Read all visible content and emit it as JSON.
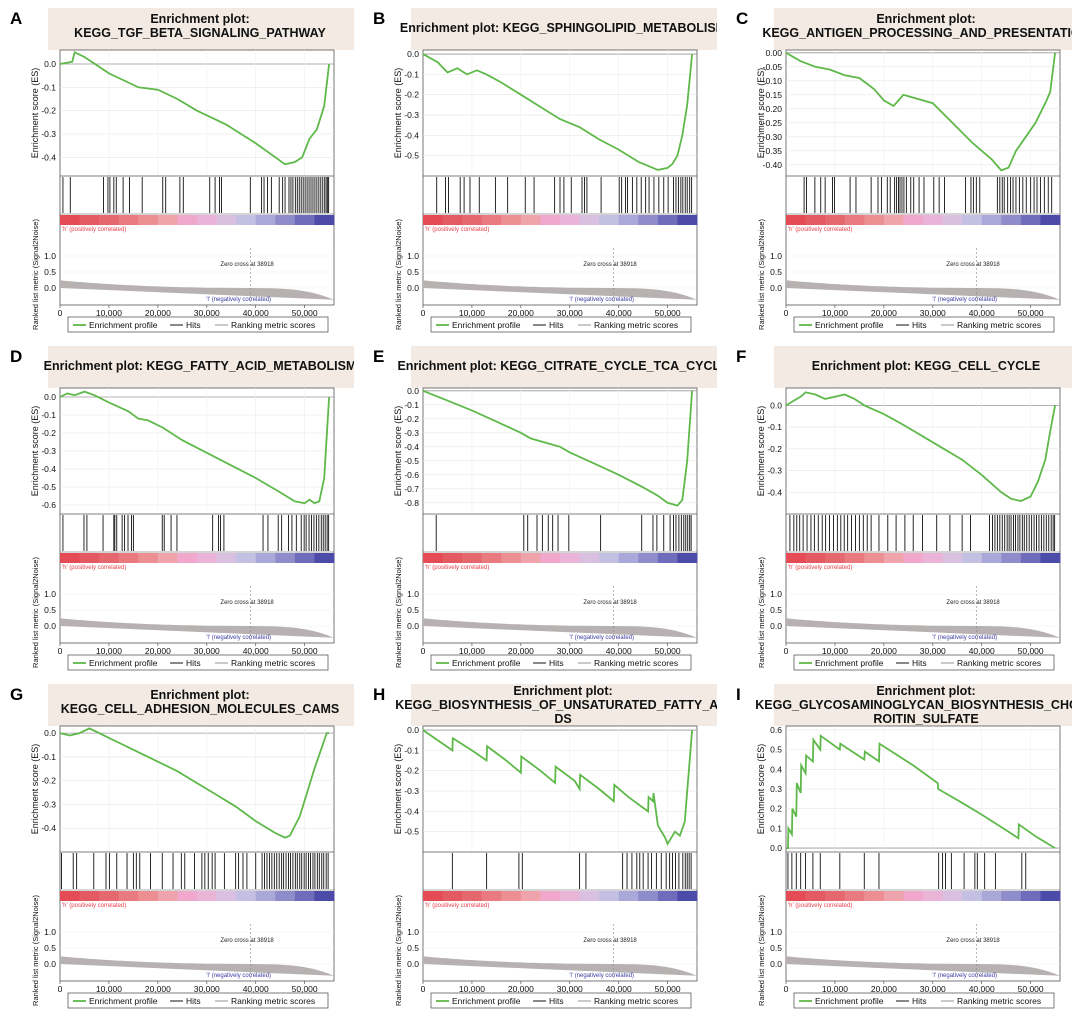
{
  "figure": {
    "panels": [
      {
        "letter": "A",
        "title_lines": [
          "Enrichment plot:",
          "KEGG_TGF_BETA_SIGNALING_PATHWAY"
        ]
      },
      {
        "letter": "B",
        "title_lines": [
          "Enrichment plot: KEGG_SPHINGOLIPID_METABOLISM"
        ]
      },
      {
        "letter": "C",
        "title_lines": [
          "Enrichment plot:",
          "KEGG_ANTIGEN_PROCESSING_AND_PRESENTATION"
        ]
      },
      {
        "letter": "D",
        "title_lines": [
          "Enrichment plot: KEGG_FATTY_ACID_METABOLISM"
        ]
      },
      {
        "letter": "E",
        "title_lines": [
          "Enrichment plot: KEGG_CITRATE_CYCLE_TCA_CYCLE"
        ]
      },
      {
        "letter": "F",
        "title_lines": [
          "Enrichment plot: KEGG_CELL_CYCLE"
        ]
      },
      {
        "letter": "G",
        "title_lines": [
          "Enrichment plot:",
          "KEGG_CELL_ADHESION_MOLECULES_CAMS"
        ]
      },
      {
        "letter": "H",
        "title_lines": [
          "Enrichment plot:",
          "KEGG_BIOSYNTHESIS_OF_UNSATURATED_FATTY_ACI",
          "DS"
        ]
      },
      {
        "letter": "I",
        "title_lines": [
          "Enrichment plot:",
          "KEGG_GLYCOSAMINOGLYCAN_BIOSYNTHESIS_CHOND",
          "ROITIN_SULFATE"
        ]
      }
    ]
  },
  "common": {
    "es_ylabel": "Enrichment score (ES)",
    "metric_ylabel": "Ranked list metric (Signal2Noise)",
    "xlabel": "Rank in Ordered Dataset",
    "pos_label": "'h' (positively correlated)",
    "neg_label": "'l' (negatively correlated)",
    "zero_cross": "Zero cross at 38918",
    "x_ticks": [
      "0",
      "10,000",
      "20,000",
      "30,000",
      "40,000",
      "50,000"
    ],
    "metric_ticks": [
      "0.0",
      "0.5",
      "1.0"
    ],
    "legend": [
      "Enrichment profile",
      "Hits",
      "Ranking metric scores"
    ]
  },
  "colors": {
    "es_line": "#5fb94a",
    "hit": "#111111",
    "metric_fill": "#b7b1b1",
    "pos_text": "#e8404a",
    "neg_text": "#3c3ca0",
    "title_bg": "#f3ebe3"
  },
  "chart_data": [
    {
      "type": "line",
      "panel": "A",
      "title": "KEGG_TGF_BETA_SIGNALING_PATHWAY",
      "xlabel": "Rank in Ordered Dataset",
      "ylabel": "Enrichment score (ES)",
      "xlim": [
        0,
        56000
      ],
      "ylim": [
        -0.48,
        0.06
      ],
      "y_ticks": [
        "0.0",
        "-0.1",
        "-0.2",
        "-0.3",
        "-0.4"
      ],
      "x": [
        0,
        2500,
        3000,
        5000,
        10000,
        12000,
        16000,
        20000,
        24000,
        28000,
        34000,
        40000,
        46000,
        48000,
        49500,
        51000,
        52500,
        54000,
        55000
      ],
      "y": [
        0.0,
        0.01,
        0.05,
        0.03,
        -0.04,
        -0.06,
        -0.1,
        -0.11,
        -0.15,
        -0.2,
        -0.26,
        -0.34,
        -0.43,
        -0.42,
        -0.4,
        -0.32,
        -0.28,
        -0.18,
        0.0
      ],
      "hits": [
        600,
        2100,
        8900,
        9800,
        10200,
        11000,
        11500,
        12900,
        14200,
        16800,
        21000,
        21600,
        24500,
        25200,
        30600,
        31700,
        32600,
        33000,
        38900,
        41200,
        41700,
        42400,
        43200,
        44800,
        45500,
        46000,
        46800,
        47200,
        47600,
        48100,
        48500,
        48900,
        49300,
        49700,
        50100,
        50500,
        50900,
        51300,
        51700,
        52100,
        52500,
        52900,
        53300,
        53700,
        54100,
        54400,
        54700,
        54900
      ]
    },
    {
      "type": "line",
      "panel": "B",
      "title": "KEGG_SPHINGOLIPID_METABOLISM",
      "xlabel": "Rank in Ordered Dataset",
      "ylabel": "Enrichment score (ES)",
      "xlim": [
        0,
        56000
      ],
      "ylim": [
        -0.6,
        0.02
      ],
      "y_ticks": [
        "0.0",
        "-0.1",
        "-0.2",
        "-0.3",
        "-0.4",
        "-0.5"
      ],
      "x": [
        0,
        3000,
        5000,
        7000,
        9000,
        11000,
        13000,
        16000,
        20000,
        24000,
        28000,
        32000,
        36000,
        40000,
        44000,
        48000,
        50000,
        51000,
        52000,
        53000,
        54000,
        55000
      ],
      "y": [
        0.0,
        -0.04,
        -0.09,
        -0.07,
        -0.1,
        -0.08,
        -0.1,
        -0.14,
        -0.2,
        -0.26,
        -0.32,
        -0.36,
        -0.42,
        -0.47,
        -0.53,
        -0.57,
        -0.56,
        -0.54,
        -0.5,
        -0.4,
        -0.25,
        0.0
      ],
      "hits": [
        2800,
        4600,
        5200,
        7600,
        8400,
        9600,
        11500,
        14800,
        17300,
        20900,
        22700,
        26900,
        28000,
        28800,
        30300,
        32500,
        33000,
        33500,
        36400,
        40100,
        40600,
        41400,
        41800,
        42800,
        43700,
        44600,
        45500,
        46200,
        47200,
        48200,
        49200,
        50100,
        51200,
        51700,
        52200,
        52700,
        53100,
        53600,
        54000,
        54500,
        54900
      ]
    },
    {
      "type": "line",
      "panel": "C",
      "title": "KEGG_ANTIGEN_PROCESSING_AND_PRESENTATION",
      "xlabel": "Rank in Ordered Dataset",
      "ylabel": "Enrichment score (ES)",
      "xlim": [
        0,
        56000
      ],
      "ylim": [
        -0.44,
        0.01
      ],
      "y_ticks": [
        "0.00",
        "-0.05",
        "-0.10",
        "-0.15",
        "-0.20",
        "-0.25",
        "-0.30",
        "-0.35",
        "-0.40"
      ],
      "x": [
        0,
        3000,
        6000,
        9000,
        12000,
        15000,
        18000,
        20000,
        22000,
        24000,
        26000,
        30000,
        34000,
        38000,
        42000,
        44000,
        45500,
        47000,
        49000,
        51000,
        53000,
        54000,
        55000
      ],
      "y": [
        0.0,
        -0.03,
        -0.05,
        -0.06,
        -0.08,
        -0.09,
        -0.13,
        -0.17,
        -0.19,
        -0.15,
        -0.16,
        -0.18,
        -0.25,
        -0.32,
        -0.38,
        -0.42,
        -0.41,
        -0.35,
        -0.3,
        -0.25,
        -0.18,
        -0.14,
        0.0
      ],
      "hits": [
        3700,
        4200,
        5900,
        7100,
        8000,
        9500,
        9900,
        13100,
        14300,
        17400,
        18800,
        19500,
        20700,
        21300,
        22200,
        22600,
        23000,
        23300,
        23700,
        24100,
        24600,
        25500,
        26100,
        27200,
        28200,
        30200,
        31300,
        32400,
        36700,
        37800,
        38300,
        38900,
        39600,
        43200,
        43700,
        44200,
        44600,
        45300,
        45900,
        46400,
        47000,
        47700,
        48400,
        49100,
        50000,
        50700,
        51300,
        52000,
        52800,
        53600,
        54300
      ]
    },
    {
      "type": "line",
      "panel": "D",
      "title": "KEGG_FATTY_ACID_METABOLISM",
      "xlabel": "Rank in Ordered Dataset",
      "ylabel": "Enrichment score (ES)",
      "xlim": [
        0,
        56000
      ],
      "ylim": [
        -0.65,
        0.05
      ],
      "y_ticks": [
        "0.0",
        "-0.1",
        "-0.2",
        "-0.3",
        "-0.4",
        "-0.5",
        "-0.6"
      ],
      "x": [
        0,
        1500,
        3000,
        5000,
        7000,
        10000,
        14000,
        16000,
        18000,
        21000,
        25000,
        30000,
        35000,
        40000,
        45000,
        48000,
        50000,
        51000,
        52000,
        53000,
        54000,
        55000
      ],
      "y": [
        0.0,
        0.02,
        0.01,
        0.03,
        0.01,
        -0.03,
        -0.08,
        -0.12,
        -0.13,
        -0.17,
        -0.24,
        -0.31,
        -0.38,
        -0.45,
        -0.53,
        -0.58,
        -0.59,
        -0.57,
        -0.59,
        -0.58,
        -0.45,
        0.0
      ],
      "hits": [
        600,
        4900,
        5500,
        8800,
        11000,
        11200,
        11600,
        12700,
        13200,
        13900,
        14600,
        15000,
        20900,
        21300,
        22700,
        23900,
        31200,
        32400,
        32800,
        33500,
        41500,
        42500,
        44600,
        45300,
        46700,
        47400,
        48300,
        49300,
        49900,
        50300,
        50900,
        51400,
        51900,
        52400,
        52900,
        53400,
        53800,
        54200,
        54600,
        54900
      ]
    },
    {
      "type": "line",
      "panel": "E",
      "title": "KEGG_CITRATE_CYCLE_TCA_CYCLE",
      "xlabel": "Rank in Ordered Dataset",
      "ylabel": "Enrichment score (ES)",
      "xlim": [
        0,
        56000
      ],
      "ylim": [
        -0.88,
        0.02
      ],
      "y_ticks": [
        "0.0",
        "-0.1",
        "-0.2",
        "-0.3",
        "-0.4",
        "-0.5",
        "-0.6",
        "-0.7",
        "-0.8"
      ],
      "x": [
        0,
        5000,
        10000,
        15000,
        20000,
        22000,
        25000,
        28000,
        30000,
        35000,
        40000,
        45000,
        48000,
        50000,
        52000,
        53000,
        54000,
        55000
      ],
      "y": [
        0.0,
        -0.07,
        -0.14,
        -0.22,
        -0.3,
        -0.34,
        -0.37,
        -0.4,
        -0.44,
        -0.52,
        -0.6,
        -0.69,
        -0.75,
        -0.8,
        -0.82,
        -0.78,
        -0.5,
        0.0
      ],
      "hits": [
        2700,
        20600,
        21400,
        23300,
        24400,
        25600,
        26500,
        27600,
        29800,
        36300,
        44700,
        47000,
        47800,
        49200,
        50500,
        51200,
        51700,
        52300,
        52800,
        53300,
        53700,
        54100,
        54500,
        54800
      ]
    },
    {
      "type": "line",
      "panel": "F",
      "title": "KEGG_CELL_CYCLE",
      "xlabel": "Rank in Ordered Dataset",
      "ylabel": "Enrichment score (ES)",
      "xlim": [
        0,
        56000
      ],
      "ylim": [
        -0.5,
        0.08
      ],
      "y_ticks": [
        "0.0",
        "-0.1",
        "-0.2",
        "-0.3",
        "-0.4"
      ],
      "x": [
        0,
        1500,
        3000,
        4000,
        6000,
        8000,
        10000,
        12000,
        14000,
        16000,
        20000,
        24000,
        30000,
        36000,
        40000,
        44000,
        46000,
        48000,
        50000,
        51500,
        53000,
        54000,
        55000
      ],
      "y": [
        0.0,
        0.02,
        0.04,
        0.06,
        0.05,
        0.03,
        0.04,
        0.05,
        0.03,
        0.0,
        -0.04,
        -0.09,
        -0.17,
        -0.25,
        -0.32,
        -0.4,
        -0.43,
        -0.44,
        -0.42,
        -0.35,
        -0.25,
        -0.12,
        0.0
      ],
      "hits": [
        800,
        1600,
        2200,
        2800,
        3500,
        4300,
        5100,
        5800,
        6600,
        7400,
        8100,
        8900,
        9700,
        10500,
        11200,
        11900,
        12600,
        13400,
        14200,
        15000,
        15800,
        16600,
        17400,
        19000,
        20800,
        22500,
        24300,
        26000,
        27900,
        30800,
        33500,
        36000,
        37700,
        41600,
        42200,
        42700,
        43200,
        43700,
        44200,
        44700,
        45200,
        45600,
        46000,
        46500,
        46900,
        47400,
        47800,
        48300,
        48700,
        49200,
        49700,
        50200,
        50700,
        51200,
        51700,
        52200,
        52700,
        53200,
        53700,
        54200,
        54600,
        54900
      ]
    },
    {
      "type": "line",
      "panel": "G",
      "title": "KEGG_CELL_ADHESION_MOLECULES_CAMS",
      "xlabel": "Rank in Ordered Dataset",
      "ylabel": "Enrichment score (ES)",
      "xlim": [
        0,
        56000
      ],
      "ylim": [
        -0.5,
        0.03
      ],
      "y_ticks": [
        "0.0",
        "-0.1",
        "-0.2",
        "-0.3",
        "-0.4"
      ],
      "x": [
        0,
        2000,
        4000,
        6000,
        8000,
        10000,
        13000,
        16000,
        20000,
        24000,
        28000,
        32000,
        36000,
        40000,
        44000,
        46000,
        47000,
        49000,
        50500,
        52000,
        53500,
        54500,
        55000
      ],
      "y": [
        0.0,
        -0.01,
        0.0,
        0.02,
        0.0,
        -0.02,
        -0.05,
        -0.08,
        -0.12,
        -0.16,
        -0.21,
        -0.26,
        -0.31,
        -0.37,
        -0.42,
        -0.44,
        -0.43,
        -0.35,
        -0.25,
        -0.15,
        -0.06,
        0.0,
        0.0
      ],
      "hits": [
        300,
        2700,
        3400,
        6900,
        9400,
        10100,
        11600,
        13700,
        15000,
        15600,
        16300,
        18500,
        20900,
        23100,
        24800,
        25500,
        27500,
        29000,
        29600,
        30300,
        31100,
        31700,
        33600,
        35900,
        36500,
        37400,
        38200,
        40000,
        41300,
        41800,
        42300,
        42800,
        43300,
        43800,
        44300,
        44800,
        45300,
        45700,
        46200,
        46700,
        47100,
        47600,
        48100,
        48500,
        49000,
        49400,
        49900,
        50300,
        50800,
        51200,
        51700,
        52100,
        52600,
        53000,
        53500,
        53900,
        54400,
        54800
      ]
    },
    {
      "type": "line",
      "panel": "H",
      "title": "KEGG_BIOSYNTHESIS_OF_UNSATURATED_FATTY_ACIDS",
      "xlabel": "Rank in Ordered Dataset",
      "ylabel": "Enrichment score (ES)",
      "xlim": [
        0,
        56000
      ],
      "ylim": [
        -0.6,
        0.02
      ],
      "y_ticks": [
        "0.0",
        "-0.1",
        "-0.2",
        "-0.3",
        "-0.4",
        "-0.5"
      ],
      "x": [
        0,
        3000,
        6000,
        6100,
        10000,
        13000,
        13100,
        17000,
        20000,
        20100,
        24000,
        27000,
        27100,
        31000,
        32000,
        32100,
        36000,
        39000,
        39100,
        42000,
        46000,
        46100,
        47000,
        47100,
        48000,
        49500,
        50000,
        51500,
        52500,
        53500,
        54000,
        54500,
        55000
      ],
      "y": [
        0.0,
        -0.05,
        -0.1,
        -0.04,
        -0.1,
        -0.15,
        -0.08,
        -0.15,
        -0.21,
        -0.13,
        -0.2,
        -0.26,
        -0.18,
        -0.25,
        -0.29,
        -0.22,
        -0.29,
        -0.35,
        -0.27,
        -0.33,
        -0.4,
        -0.33,
        -0.35,
        -0.31,
        -0.47,
        -0.53,
        -0.56,
        -0.5,
        -0.52,
        -0.45,
        -0.3,
        -0.15,
        0.0
      ],
      "hits": [
        6000,
        13000,
        19600,
        20300,
        32000,
        33300,
        40800,
        41700,
        42700,
        43700,
        44300,
        45000,
        46000,
        46700,
        47700,
        48700,
        49700,
        50400,
        51000,
        51600,
        52300,
        53100,
        53600,
        54000,
        54400,
        54800
      ]
    },
    {
      "type": "line",
      "panel": "I",
      "title": "KEGG_GLYCOSAMINOGLYCAN_BIOSYNTHESIS_CHONDROITIN_SULFATE",
      "xlabel": "Rank in Ordered Dataset",
      "ylabel": "Enrichment score (ES)",
      "xlim": [
        0,
        56000
      ],
      "ylim": [
        -0.02,
        0.62
      ],
      "y_ticks": [
        "0.6",
        "0.5",
        "0.4",
        "0.3",
        "0.2",
        "0.1",
        "0.0"
      ],
      "x": [
        0,
        400,
        500,
        1200,
        1300,
        2100,
        2200,
        3000,
        3100,
        4000,
        4100,
        5500,
        5600,
        7000,
        7100,
        11000,
        11100,
        16000,
        16100,
        19000,
        19100,
        26000,
        31000,
        31100,
        36000,
        40000,
        45000,
        47500,
        47600,
        51000,
        55000
      ],
      "y": [
        0.0,
        0.0,
        0.1,
        0.07,
        0.2,
        0.16,
        0.33,
        0.28,
        0.42,
        0.38,
        0.47,
        0.44,
        0.55,
        0.5,
        0.57,
        0.5,
        0.53,
        0.45,
        0.49,
        0.44,
        0.53,
        0.42,
        0.33,
        0.3,
        0.23,
        0.17,
        0.09,
        0.05,
        0.12,
        0.06,
        0.0
      ],
      "hits": [
        400,
        1200,
        2100,
        3000,
        4000,
        5500,
        7000,
        11000,
        16000,
        19000,
        31200,
        32000,
        32600,
        33800,
        36400,
        38600,
        39100,
        40600,
        42800,
        48200,
        49000
      ]
    }
  ]
}
